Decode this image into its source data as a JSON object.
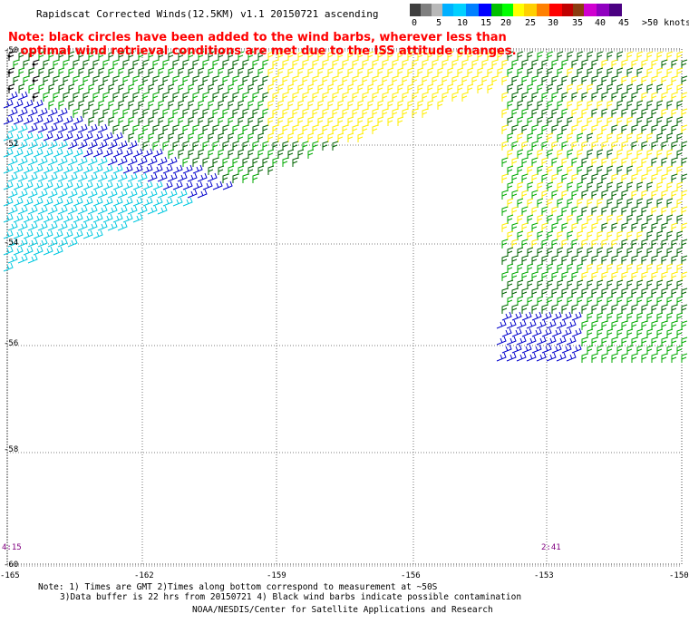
{
  "header": {
    "title": "Rapidscat Corrected Winds(12.5KM) v1.1 20150721 ascending",
    "note_line1": "Note: black circles have been added to the wind barbs, wherever less than",
    "note_line2": "   optimal wind retrieval conditions are met due to the ISS attitude changes."
  },
  "colorbar": {
    "colors": [
      "#3f3f3f",
      "#7f7f7f",
      "#b8b8b8",
      "#00b0ff",
      "#00d0ff",
      "#0080ff",
      "#0000ff",
      "#00c000",
      "#00ff00",
      "#ffff00",
      "#ffd000",
      "#ff8000",
      "#ff0000",
      "#c00000",
      "#8b3c10",
      "#d000d0",
      "#9000c0",
      "#4b0082"
    ],
    "labels": [
      "0",
      "5",
      "10",
      "15",
      "20",
      "25",
      "30",
      "35",
      "40",
      "45",
      ">50 knots"
    ]
  },
  "axes": {
    "lat_labels": [
      "-50",
      "-52",
      "-54",
      "-56",
      "-58",
      "-60"
    ],
    "lon_labels": [
      "-165",
      "-162",
      "-159",
      "-156",
      "-153",
      "-150"
    ]
  },
  "time_labels": [
    "4:15",
    "2:41"
  ],
  "footer": {
    "line1": "Note: 1) Times are GMT 2)Times along bottom correspond to measurement at ~50S",
    "line2": "3)Data buffer is 22 hrs from 20150721 4) Black wind barbs indicate possible contamination",
    "line3": "NOAA/NESDIS/Center for Satellite Applications and Research"
  },
  "wind_colors": {
    "cyan": "#00c8e0",
    "blue": "#0000cc",
    "green": "#00aa00",
    "darkgreen": "#006400",
    "yellow": "#ffee00",
    "black": "#000000"
  }
}
